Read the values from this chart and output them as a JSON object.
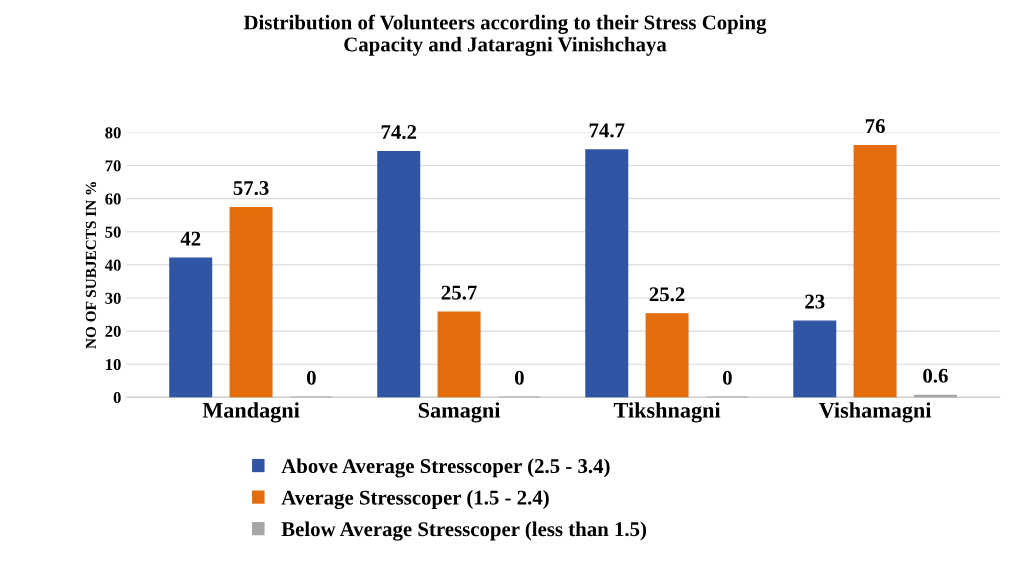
{
  "chart_data": {
    "type": "bar",
    "title": "Distribution of Volunteers according to their Stress Coping\nCapacity and Jataragni Vinishchaya",
    "ylabel": "NO OF SUBJECTS IN %",
    "categories": [
      "Mandagni",
      "Samagni",
      "Tikshnagni",
      "Vishamagni"
    ],
    "series": [
      {
        "name": "Above Average Stresscoper (2.5 - 3.4)",
        "color": "#2f55a4",
        "values": [
          42,
          74.2,
          74.7,
          23
        ]
      },
      {
        "name": "Average Stresscoper (1.5 - 2.4)",
        "color": "#e46c0a",
        "values": [
          57.3,
          25.7,
          25.2,
          76
        ]
      },
      {
        "name": "Below Average Stresscoper (less than 1.5)",
        "color": "#a6a6a6",
        "values": [
          0,
          0,
          0,
          0.6
        ]
      }
    ],
    "ylim": [
      0,
      80
    ],
    "yticks": [
      0,
      10,
      20,
      30,
      40,
      50,
      60,
      70,
      80
    ],
    "grid": "y",
    "legend": "bottom",
    "data_labels": true
  }
}
